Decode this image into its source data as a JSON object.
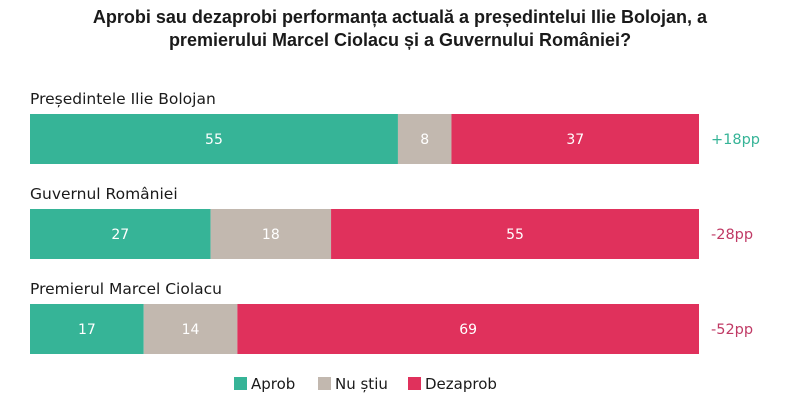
{
  "chart_data": {
    "type": "bar",
    "orientation": "horizontal",
    "stacked": true,
    "title_lines": [
      "Aprobi sau dezaprobi performanța actuală a președintelui Ilie Bolojan, a",
      "premierului Marcel Ciolacu și a Guvernului României?"
    ],
    "categories": [
      "Președintele Ilie Bolojan",
      "Guvernul României",
      "Premierul Marcel Ciolacu"
    ],
    "series": [
      {
        "name": "Aprob",
        "color": "#36b497",
        "values": [
          55,
          27,
          17
        ]
      },
      {
        "name": "Nu știu",
        "color": "#c2b8af",
        "values": [
          8,
          18,
          14
        ]
      },
      {
        "name": "Dezaprob",
        "color": "#e0315c",
        "values": [
          37,
          55,
          69
        ]
      }
    ],
    "net": [
      {
        "label": "+18pp",
        "color": "#36b497"
      },
      {
        "label": "-28pp",
        "color": "#c03a65"
      },
      {
        "label": "-52pp",
        "color": "#c03a65"
      }
    ],
    "xlim": [
      0,
      100
    ],
    "grid": false,
    "legend_position": "bottom-center"
  }
}
